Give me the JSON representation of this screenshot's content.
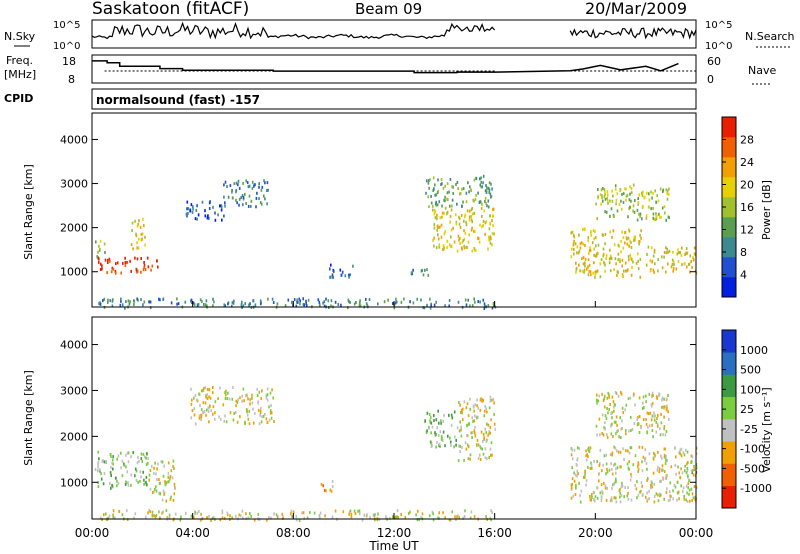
{
  "header": {
    "station": "Saskatoon (fitACF)",
    "beam": "Beam 09",
    "date": "20/Mar/2009",
    "cpid_label": "CPID",
    "cpid_value": "normalsound (fast) -157"
  },
  "chart_data": [
    {
      "type": "line",
      "panel": "noise",
      "left_label": "N.Sky",
      "right_label": "N.Search",
      "left_ticks": [
        "10^5",
        "10^0"
      ],
      "right_ticks": [
        "10^5",
        "10^0"
      ],
      "data_gap": [
        "16:00",
        "19:00"
      ]
    },
    {
      "type": "line",
      "panel": "frequency",
      "left_label": "Freq.",
      "left_unit": "[MHz]",
      "left_ticks": [
        18,
        8
      ],
      "right_label": "Nave",
      "right_ticks": [
        60,
        0
      ],
      "freq_steps": [
        {
          "t": 0.0,
          "v": 17.5
        },
        {
          "t": 0.6,
          "v": 16.5
        },
        {
          "t": 1.1,
          "v": 14.5
        },
        {
          "t": 2.7,
          "v": 13.2
        },
        {
          "t": 3.6,
          "v": 12.3
        },
        {
          "t": 7.2,
          "v": 11.8
        },
        {
          "t": 9.6,
          "v": 11.8
        },
        {
          "t": 12.0,
          "v": 11.8
        },
        {
          "t": 12.8,
          "v": 11.0
        },
        {
          "t": 14.5,
          "v": 11.3
        },
        {
          "t": 16.0,
          "v": 11.3
        },
        {
          "t": 19.0,
          "v": 12.0
        },
        {
          "t": 19.5,
          "v": 13.0
        },
        {
          "t": 20.2,
          "v": 15.0
        },
        {
          "t": 21.0,
          "v": 12.5
        },
        {
          "t": 22.0,
          "v": 14.5
        },
        {
          "t": 22.6,
          "v": 12.0
        },
        {
          "t": 23.3,
          "v": 16.0
        },
        {
          "t": 24.0,
          "v": 16.0
        }
      ]
    },
    {
      "type": "heatmap",
      "panel": "power",
      "ylabel": "Slant Range [km]",
      "yticks": [
        1000,
        2000,
        3000,
        4000
      ],
      "ylim": [
        200,
        4600
      ],
      "colorbar_label": "Power [dB]",
      "colorbar_ticks": [
        4,
        8,
        12,
        16,
        20,
        24,
        28
      ],
      "colorbar_range": [
        0,
        32
      ],
      "colors": [
        "#0020e0",
        "#2050d0",
        "#3c8a90",
        "#5a9e50",
        "#a0c030",
        "#e8d000",
        "#f0a000",
        "#f06000",
        "#e82000"
      ],
      "patches": [
        {
          "t0": 0.1,
          "t1": 2.6,
          "r0": 1000,
          "r1": 1350,
          "level": 8
        },
        {
          "t0": 0.1,
          "t1": 0.5,
          "r0": 1350,
          "r1": 1750,
          "level": 4
        },
        {
          "t0": 1.5,
          "t1": 2.1,
          "r0": 1550,
          "r1": 2250,
          "level": 5
        },
        {
          "t0": 5.2,
          "t1": 7.0,
          "r0": 2500,
          "r1": 3100,
          "level": 2
        },
        {
          "t0": 3.7,
          "t1": 5.3,
          "r0": 2200,
          "r1": 2650,
          "level": 1
        },
        {
          "t0": 13.5,
          "t1": 16.0,
          "r0": 1500,
          "r1": 2500,
          "level": 5
        },
        {
          "t0": 12.5,
          "t1": 13.4,
          "r0": 900,
          "r1": 1100,
          "level": 2
        },
        {
          "t0": 9.4,
          "t1": 10.4,
          "r0": 900,
          "r1": 1200,
          "level": 1
        },
        {
          "t0": 19.0,
          "t1": 21.8,
          "r0": 900,
          "r1": 2000,
          "level": 5
        },
        {
          "t0": 20.0,
          "t1": 22.9,
          "r0": 2200,
          "r1": 3000,
          "level": 4
        },
        {
          "t0": 22.0,
          "t1": 24.0,
          "r0": 1000,
          "r1": 1600,
          "level": 5
        },
        {
          "t0": 0.2,
          "t1": 16.0,
          "r0": 200,
          "r1": 420,
          "level": 2
        },
        {
          "t0": 13.2,
          "t1": 15.9,
          "r0": 2500,
          "r1": 3200,
          "level": 3
        }
      ]
    },
    {
      "type": "heatmap",
      "panel": "velocity",
      "ylabel": "Slant Range [km]",
      "yticks": [
        1000,
        2000,
        3000,
        4000
      ],
      "ylim": [
        200,
        4600
      ],
      "colorbar_label": "Velocity [m s⁻¹]",
      "colorbar_ticks": [
        -1000,
        -500,
        -100,
        -25,
        25,
        100,
        500,
        1000
      ],
      "colors": [
        "#e82000",
        "#f06000",
        "#f0a000",
        "#c0c0c0",
        "#7acc40",
        "#3c9a40",
        "#2a70c0",
        "#1838d0"
      ],
      "patches": [
        {
          "t0": 0.1,
          "t1": 2.2,
          "r0": 900,
          "r1": 1700,
          "level": 4
        },
        {
          "t0": 2.2,
          "t1": 3.3,
          "r0": 600,
          "r1": 1500,
          "level": 3
        },
        {
          "t0": 3.9,
          "t1": 7.2,
          "r0": 2300,
          "r1": 3100,
          "level": 3
        },
        {
          "t0": 9.0,
          "t1": 9.6,
          "r0": 800,
          "r1": 1050,
          "level": 2
        },
        {
          "t0": 13.2,
          "t1": 14.5,
          "r0": 1800,
          "r1": 2600,
          "level": 4
        },
        {
          "t0": 14.5,
          "t1": 16.0,
          "r0": 1500,
          "r1": 2900,
          "level": 3
        },
        {
          "t0": 19.0,
          "t1": 24.0,
          "r0": 600,
          "r1": 1800,
          "level": 3
        },
        {
          "t0": 20.0,
          "t1": 22.9,
          "r0": 2000,
          "r1": 3000,
          "level": 3
        },
        {
          "t0": 23.5,
          "t1": 24.0,
          "r0": 1100,
          "r1": 1500,
          "level": 4
        },
        {
          "t0": 0.2,
          "t1": 16.0,
          "r0": 200,
          "r1": 420,
          "level": 3
        }
      ]
    }
  ],
  "xaxis": {
    "label": "Time UT",
    "ticks": [
      "00:00",
      "04:00",
      "08:00",
      "12:00",
      "16:00",
      "20:00",
      "00:00"
    ],
    "range_hours": [
      0,
      24
    ]
  }
}
